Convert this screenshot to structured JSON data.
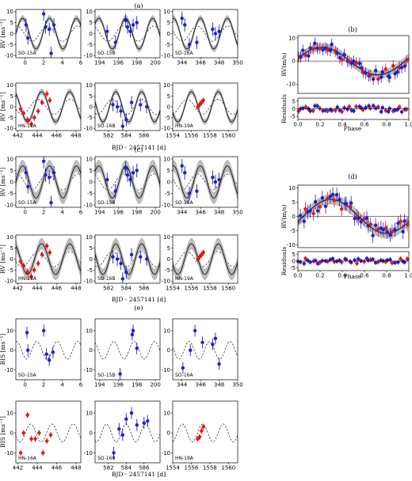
{
  "chart_data": {
    "type": "scatter",
    "sections": [
      {
        "label": "(a)"
      },
      {
        "label": "(b)"
      },
      {
        "label": "(c)"
      },
      {
        "label": "(d)"
      },
      {
        "label": "(e)"
      }
    ],
    "axis_labels": {
      "rv": "RV [ms⁻¹]",
      "rv_phase": "RV(m/s)",
      "residuals": "Residuals",
      "phase": "Phase",
      "bis": "BIS [ms⁻¹]",
      "time": "BJD - 2457141 [d]"
    },
    "colors": {
      "so": "#1f1fcc",
      "hn": "#e01818",
      "model": "#111111",
      "band": "#aaaaaa",
      "dashed": "#222222"
    },
    "panels": [
      {
        "tag": "SO-15A",
        "instrument": "SO",
        "xticks": [
          0,
          2,
          4,
          6
        ],
        "xlim": [
          -1,
          6
        ],
        "points": [
          [
            0.1,
            4
          ],
          [
            0.3,
            -2
          ],
          [
            2.0,
            9
          ],
          [
            2.2,
            3
          ],
          [
            2.6,
            2
          ],
          [
            2.8,
            -9
          ],
          [
            3.1,
            4
          ]
        ]
      },
      {
        "tag": "SO-15B",
        "instrument": "SO",
        "xticks": [
          194,
          196,
          198,
          200
        ],
        "xlim": [
          193.5,
          200.5
        ],
        "points": [
          [
            194.8,
            1
          ],
          [
            195.7,
            -4
          ],
          [
            196.8,
            6
          ],
          [
            197.0,
            3
          ],
          [
            197.3,
            1
          ],
          [
            197.6,
            4
          ],
          [
            198.0,
            5
          ]
        ]
      },
      {
        "tag": "SO-16A",
        "instrument": "SO",
        "xticks": [
          344,
          346,
          348,
          350
        ],
        "xlim": [
          343,
          350
        ],
        "points": [
          [
            344.0,
            7
          ],
          [
            344.3,
            4
          ],
          [
            344.8,
            -5
          ],
          [
            345.6,
            -4
          ],
          [
            347.3,
            2
          ],
          [
            347.6,
            0
          ],
          [
            348.0,
            1
          ]
        ]
      },
      {
        "tag": "HN-16A",
        "instrument": "HN",
        "xticks": [
          442,
          444,
          446,
          448
        ],
        "xlim": [
          441.8,
          448.5
        ],
        "points": [
          [
            442.3,
            -1
          ],
          [
            442.6,
            -3
          ],
          [
            443.0,
            -6
          ],
          [
            443.4,
            -8
          ],
          [
            443.7,
            -5
          ],
          [
            444.1,
            -2
          ],
          [
            444.5,
            2
          ],
          [
            445.0,
            6
          ],
          [
            445.3,
            3
          ]
        ]
      },
      {
        "tag": "SO-16B",
        "instrument": "SO",
        "xticks": [
          582,
          584,
          586
        ],
        "xlim": [
          580.5,
          587.8
        ],
        "points": [
          [
            582.5,
            1
          ],
          [
            583.0,
            0
          ],
          [
            583.4,
            -2
          ],
          [
            583.6,
            -9
          ],
          [
            584.0,
            -6
          ],
          [
            584.6,
            2
          ],
          [
            585.6,
            1
          ],
          [
            586.3,
            0
          ]
        ]
      },
      {
        "tag": "HN-19A",
        "instrument": "HN",
        "xticks": [
          1554,
          1556,
          1558,
          1560
        ],
        "xlim": [
          1554,
          1561
        ],
        "points": [
          [
            1556.7,
            0
          ],
          [
            1556.9,
            1
          ],
          [
            1557.1,
            2
          ],
          [
            1557.3,
            3
          ]
        ]
      }
    ],
    "phase_panels": [
      {
        "yticks": [
          10,
          0,
          -10
        ],
        "ylim": [
          -14,
          11
        ],
        "resid_yticks": [
          5,
          0,
          -5
        ],
        "xticks": [
          "0.0",
          "0.2",
          "0.4",
          "0.6",
          "0.8",
          "1.0"
        ]
      },
      {
        "yticks": [
          10,
          5,
          0,
          -5,
          -10
        ],
        "ylim": [
          -11,
          11
        ],
        "resid_yticks": [
          5,
          0,
          -5
        ],
        "xticks": [
          "0.0",
          "0.2",
          "0.4",
          "0.6",
          "0.8",
          "1.0"
        ]
      }
    ],
    "bis_panels": [
      {
        "tag": "SO-15A",
        "instrument": "SO",
        "points": [
          [
            0.2,
            9
          ],
          [
            0.3,
            0
          ],
          [
            2.0,
            10
          ],
          [
            2.3,
            -2
          ],
          [
            2.6,
            -5
          ],
          [
            3.0,
            -1
          ]
        ]
      },
      {
        "tag": "SO-15B",
        "instrument": "SO",
        "points": [
          [
            196.2,
            -12
          ],
          [
            197.5,
            8
          ],
          [
            197.6,
            10
          ],
          [
            198.0,
            1
          ]
        ]
      },
      {
        "tag": "SO-16A",
        "instrument": "SO",
        "points": [
          [
            344.1,
            -9
          ],
          [
            344.9,
            0
          ],
          [
            345.4,
            10
          ],
          [
            346.2,
            4
          ],
          [
            347.3,
            3
          ],
          [
            347.6,
            6
          ],
          [
            348.0,
            -7
          ]
        ]
      },
      {
        "tag": "HN-16A",
        "instrument": "HN",
        "points": [
          [
            442.3,
            -10
          ],
          [
            442.6,
            0
          ],
          [
            443.0,
            9
          ],
          [
            443.4,
            -3
          ],
          [
            443.8,
            -3
          ],
          [
            444.2,
            0
          ],
          [
            444.6,
            -10
          ],
          [
            445.0,
            -4
          ],
          [
            445.4,
            -1
          ]
        ]
      },
      {
        "tag": "SO-16B",
        "instrument": "SO",
        "points": [
          [
            582.6,
            -10
          ],
          [
            583.2,
            2
          ],
          [
            583.6,
            -1
          ],
          [
            584.0,
            7
          ],
          [
            584.6,
            10
          ],
          [
            585.2,
            4
          ],
          [
            586.0,
            5
          ],
          [
            586.4,
            6
          ]
        ]
      },
      {
        "tag": "HN-19A",
        "instrument": "HN",
        "points": [
          [
            1556.7,
            -3
          ],
          [
            1556.9,
            -2
          ],
          [
            1557.1,
            1
          ],
          [
            1557.3,
            3
          ]
        ]
      }
    ],
    "rv_yticks": [
      10,
      5,
      0,
      -5,
      -10
    ],
    "rv_ylim": [
      -11,
      11
    ],
    "bis_yticks": [
      10,
      0,
      -10
    ],
    "bis_ylim": [
      -15,
      16
    ]
  }
}
